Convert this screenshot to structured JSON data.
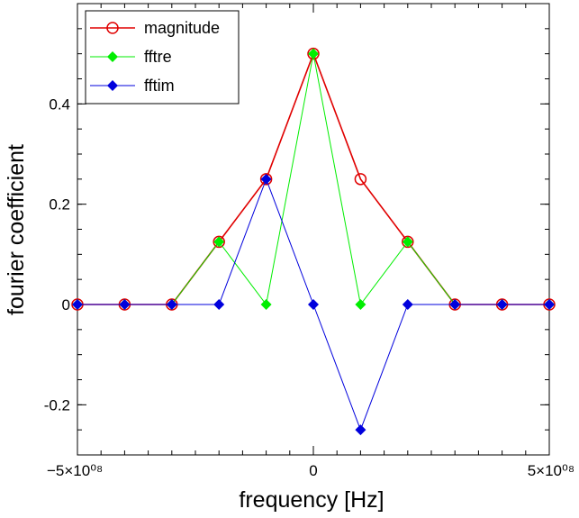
{
  "chart_data": {
    "type": "line",
    "xlabel": "frequency [Hz]",
    "ylabel": "fourier coefficient",
    "xlim": [
      -500000000,
      500000000
    ],
    "ylim": [
      -0.3,
      0.6
    ],
    "x_ticks": [
      {
        "value": -500000000,
        "label": "−5×10⁰⁸"
      },
      {
        "value": 0,
        "label": "0"
      },
      {
        "value": 500000000,
        "label": "5×10⁰⁸"
      }
    ],
    "y_ticks": [
      {
        "value": -0.2,
        "label": "-0.2"
      },
      {
        "value": 0,
        "label": "0"
      },
      {
        "value": 0.2,
        "label": "0.2"
      },
      {
        "value": 0.4,
        "label": "0.4"
      }
    ],
    "grid": false,
    "legend": "top-left",
    "x": [
      -500000000,
      -400000000,
      -300000000,
      -200000000,
      -100000000,
      0,
      100000000,
      200000000,
      300000000,
      400000000,
      500000000
    ],
    "series": [
      {
        "name": "magnitude",
        "color": "#e00000",
        "marker": "open-circle",
        "values": [
          0,
          0,
          0,
          0.125,
          0.25,
          0.5,
          0.25,
          0.125,
          0,
          0,
          0
        ]
      },
      {
        "name": "fftre",
        "color": "#00ee00",
        "marker": "diamond",
        "values": [
          0,
          0,
          0,
          0.125,
          0,
          0.5,
          0,
          0.125,
          0,
          0,
          0
        ]
      },
      {
        "name": "fftim",
        "color": "#0000dd",
        "marker": "diamond",
        "values": [
          0,
          0,
          0,
          0,
          0.25,
          0,
          -0.25,
          0,
          0,
          0,
          0
        ]
      }
    ]
  }
}
